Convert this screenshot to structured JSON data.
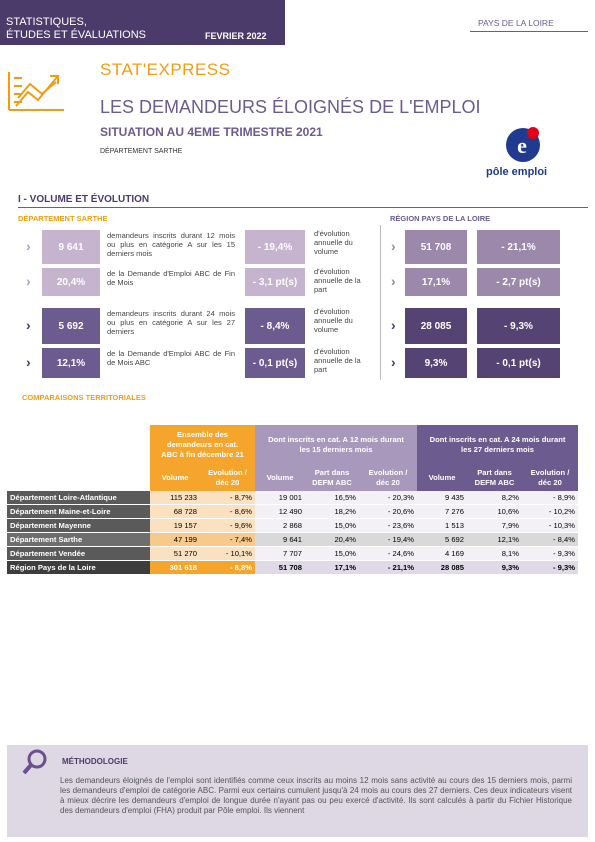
{
  "header": {
    "series": [
      "STATISTIQUES,",
      "ÉTUDES ET ÉVALUATIONS"
    ],
    "date": "FEVRIER 2022",
    "region": "PAYS DE LA LOIRE",
    "brand": "STAT'EXPRESS",
    "title": "LES DEMANDEURS ÉLOIGNÉS DE L'EMPLOI",
    "subtitle": "SITUATION AU 4EME TRIMESTRE 2021",
    "department": "DÉPARTEMENT SARTHE",
    "logo": "pôle emploi"
  },
  "volume": {
    "title": "I - VOLUME ET ÉVOLUTION",
    "left_label": "DÉPARTEMENT SARTHE",
    "right_label": "RÉGION PAYS DE LA LOIRE",
    "rows": [
      {
        "value": "9 641",
        "description": "demandeurs inscrits durant 12 mois ou plus en catégorie A sur les 15 derniers mois",
        "evolution": "- 19,4%",
        "evolution_description": "d'évolution annuelle du volume",
        "region_value": "51 708",
        "region_evolution": "- 21,1%"
      },
      {
        "value": "20,4%",
        "description": "de la Demande d'Emploi ABC de Fin de Mois",
        "evolution": "- 3,1 pt(s)",
        "evolution_description": "d'évolution annuelle de la part",
        "region_value": "17,1%",
        "region_evolution": "- 2,7 pt(s)"
      },
      {
        "value": "5 692",
        "description": "demandeurs inscrits durant 24 mois ou plus en catégorie A sur les 27 derniers",
        "evolution": "- 8,4%",
        "evolution_description": "d'évolution annuelle du volume",
        "region_value": "28 085",
        "region_evolution": "- 9,3%"
      },
      {
        "value": "12,1%",
        "description": "de la Demande d'Emploi ABC de Fin de Mois ABC",
        "evolution": "- 0,1 pt(s)",
        "evolution_description": "d'évolution annuelle de la part",
        "region_value": "9,3%",
        "region_evolution": "- 0,1 pt(s)"
      }
    ]
  },
  "comparisons": {
    "title": "COMPARAISONS TERRITORIALES",
    "groups": [
      "Ensemble des demandeurs en cat. ABC à fin décembre 21",
      "Dont inscrits en cat. A 12 mois durant les 15 derniers mois",
      "Dont inscrits en cat. A 24 mois durant les 27 derniers mois"
    ],
    "columns": [
      "Volume",
      "Evolution / déc 20",
      "Volume",
      "Part dans DEFM ABC",
      "Evolution / déc 20",
      "Volume",
      "Part dans DEFM ABC",
      "Evolution / déc 20"
    ],
    "rows": [
      [
        "Département Loire-Atlantique",
        "115 233",
        "- 8,7%",
        "19 001",
        "16,5%",
        "- 20,3%",
        "9 435",
        "8,2%",
        "- 8,9%"
      ],
      [
        "Département Maine-et-Loire",
        "68 728",
        "- 8,6%",
        "12 490",
        "18,2%",
        "- 20,6%",
        "7 276",
        "10,6%",
        "- 10,2%"
      ],
      [
        "Département Mayenne",
        "19 157",
        "- 9,6%",
        "2 868",
        "15,0%",
        "- 23,6%",
        "1 513",
        "7,9%",
        "- 10,3%"
      ],
      [
        "Département Sarthe",
        "47 199",
        "- 7,4%",
        "9 641",
        "20,4%",
        "- 19,4%",
        "5 692",
        "12,1%",
        "- 8,4%"
      ],
      [
        "Département Vendée",
        "51 270",
        "- 10,1%",
        "7 707",
        "15,0%",
        "- 24,6%",
        "4 169",
        "8,1%",
        "- 9,3%"
      ],
      [
        "Région Pays de la Loire",
        "301 618",
        "- 8,8%",
        "51 708",
        "17,1%",
        "- 21,1%",
        "28 085",
        "9,3%",
        "- 9,3%"
      ]
    ]
  },
  "methodology": {
    "title": "MÉTHODOLOGIE",
    "text": "Les demandeurs éloignés de l'emploi sont identifiés comme ceux inscrits au moins 12 mois sans activité au cours des 15 derniers mois, parmi les demandeurs d'emploi de catégorie ABC. Parmi eux certains cumulent jusqu'à 24 mois au cours des 27 derniers. Ces deux indicateurs visent à mieux décrire les demandeurs d'emploi de longue durée n'ayant pas ou peu exercé d'activité. Ils sont calculés à partir du Fichier Historique des demandeurs d'emploi (FHA) produit par Pôle emploi. Ils viennent"
  }
}
